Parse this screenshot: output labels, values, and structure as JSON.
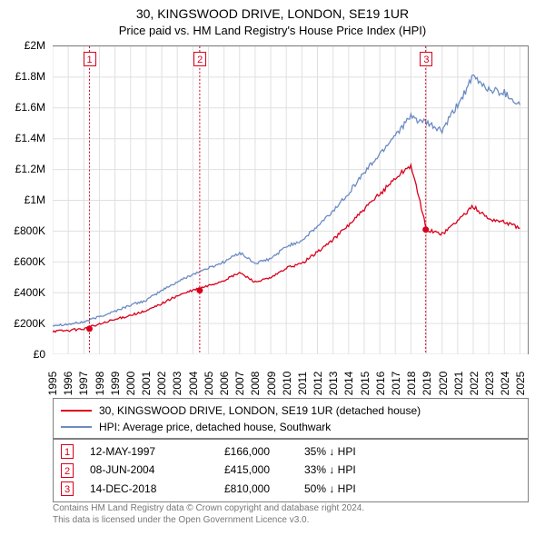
{
  "title": {
    "line1": "30, KINGSWOOD DRIVE, LONDON, SE19 1UR",
    "line2": "Price paid vs. HM Land Registry's House Price Index (HPI)"
  },
  "chart": {
    "type": "line",
    "background_color": "#ffffff",
    "grid_color": "#e0e0e0",
    "border_color": "#808080",
    "x": {
      "min": 1995,
      "max": 2025.5,
      "ticks": [
        1995,
        1996,
        1997,
        1998,
        1999,
        2000,
        2001,
        2002,
        2003,
        2004,
        2005,
        2006,
        2007,
        2008,
        2009,
        2010,
        2011,
        2012,
        2013,
        2014,
        2015,
        2016,
        2017,
        2018,
        2019,
        2020,
        2021,
        2022,
        2023,
        2024,
        2025
      ]
    },
    "y": {
      "min": 0,
      "max": 2000000,
      "step": 200000,
      "labels": [
        "£0",
        "£200K",
        "£400K",
        "£600K",
        "£800K",
        "£1M",
        "£1.2M",
        "£1.4M",
        "£1.6M",
        "£1.8M",
        "£2M"
      ]
    },
    "series": {
      "hpi": {
        "label": "HPI: Average price, detached house, Southwark",
        "color": "#6b8bc4",
        "line_width": 1.3,
        "points_yearly": [
          190000,
          195000,
          210000,
          245000,
          280000,
          320000,
          350000,
          415000,
          470000,
          520000,
          560000,
          600000,
          660000,
          590000,
          620000,
          700000,
          740000,
          830000,
          930000,
          1050000,
          1180000,
          1300000,
          1430000,
          1540000,
          1500000,
          1450000,
          1620000,
          1800000,
          1720000,
          1700000,
          1620000
        ]
      },
      "price": {
        "label": "30, KINGSWOOD DRIVE, LONDON, SE19 1UR (detached house)",
        "color": "#d9001b",
        "line_width": 1.3,
        "points_yearly": [
          150000,
          155000,
          166000,
          195000,
          225000,
          255000,
          280000,
          330000,
          380000,
          415000,
          445000,
          480000,
          530000,
          470000,
          495000,
          560000,
          590000,
          665000,
          745000,
          840000,
          940000,
          1040000,
          1145000,
          1230000,
          810000,
          780000,
          870000,
          960000,
          880000,
          860000,
          820000
        ]
      }
    },
    "markers": [
      {
        "n": "1",
        "date": "12-MAY-1997",
        "year": 1997.36,
        "price_text": "£166,000",
        "diff_text": "35% ↓ HPI",
        "color": "#d9001b",
        "y": 166000
      },
      {
        "n": "2",
        "date": "08-JUN-2004",
        "year": 2004.44,
        "price_text": "£415,000",
        "diff_text": "33% ↓ HPI",
        "color": "#d9001b",
        "y": 415000
      },
      {
        "n": "3",
        "date": "14-DEC-2018",
        "year": 2018.95,
        "price_text": "£810,000",
        "diff_text": "50% ↓ HPI",
        "color": "#d9001b",
        "y": 810000
      }
    ]
  },
  "footer": {
    "line1": "Contains HM Land Registry data © Crown copyright and database right 2024.",
    "line2": "This data is licensed under the Open Government Licence v3.0."
  }
}
